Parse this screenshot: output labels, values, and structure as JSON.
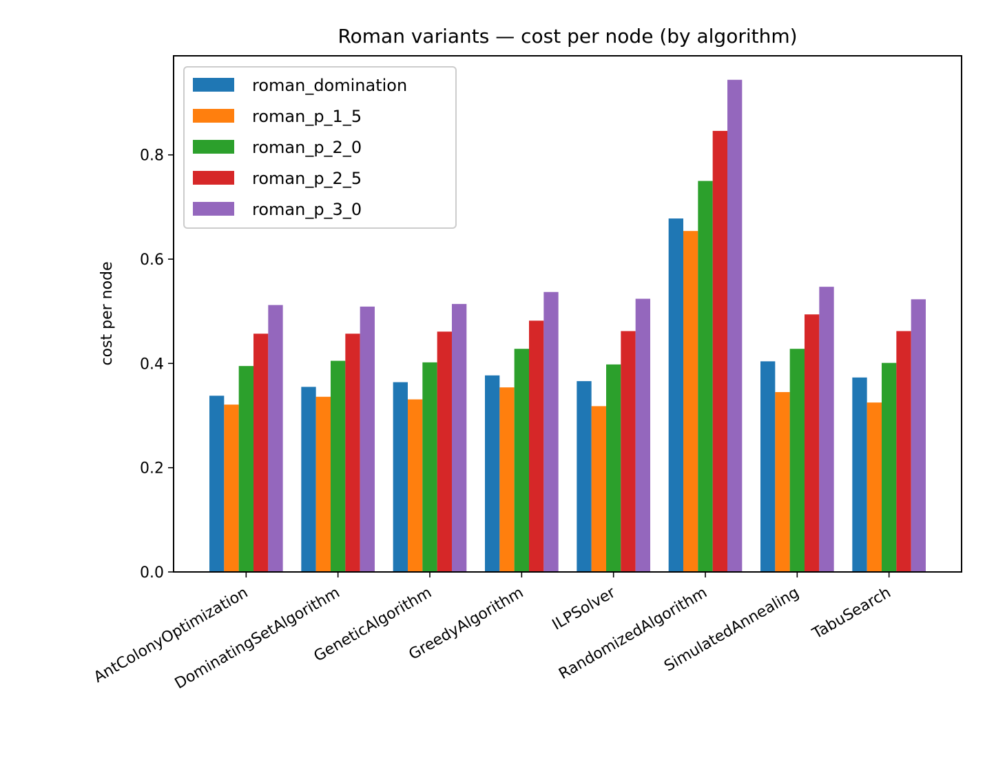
{
  "chart_data": {
    "type": "bar",
    "title": "Roman variants — cost per node (by algorithm)",
    "xlabel": "",
    "ylabel": "cost per node",
    "ylim": [
      0,
      0.99
    ],
    "yticks": [
      "0.0",
      "0.2",
      "0.4",
      "0.6",
      "0.8"
    ],
    "grid": false,
    "legend_position": "top-left",
    "categories": [
      "AntColonyOptimization",
      "DominatingSetAlgorithm",
      "GeneticAlgorithm",
      "GreedyAlgorithm",
      "ILPSolver",
      "RandomizedAlgorithm",
      "SimulatedAnnealing",
      "TabuSearch"
    ],
    "series": [
      {
        "name": "roman_domination",
        "color": "#1f77b4",
        "values": [
          0.338,
          0.355,
          0.364,
          0.377,
          0.366,
          0.678,
          0.404,
          0.373
        ]
      },
      {
        "name": "roman_p_1_5",
        "color": "#ff7f0e",
        "values": [
          0.321,
          0.336,
          0.331,
          0.354,
          0.318,
          0.654,
          0.345,
          0.325
        ]
      },
      {
        "name": "roman_p_2_0",
        "color": "#2ca02c",
        "values": [
          0.395,
          0.405,
          0.402,
          0.428,
          0.398,
          0.75,
          0.428,
          0.401
        ]
      },
      {
        "name": "roman_p_2_5",
        "color": "#d62728",
        "values": [
          0.457,
          0.457,
          0.461,
          0.482,
          0.462,
          0.846,
          0.494,
          0.462
        ]
      },
      {
        "name": "roman_p_3_0",
        "color": "#9467bd",
        "values": [
          0.512,
          0.509,
          0.514,
          0.537,
          0.524,
          0.944,
          0.547,
          0.523
        ]
      }
    ]
  }
}
